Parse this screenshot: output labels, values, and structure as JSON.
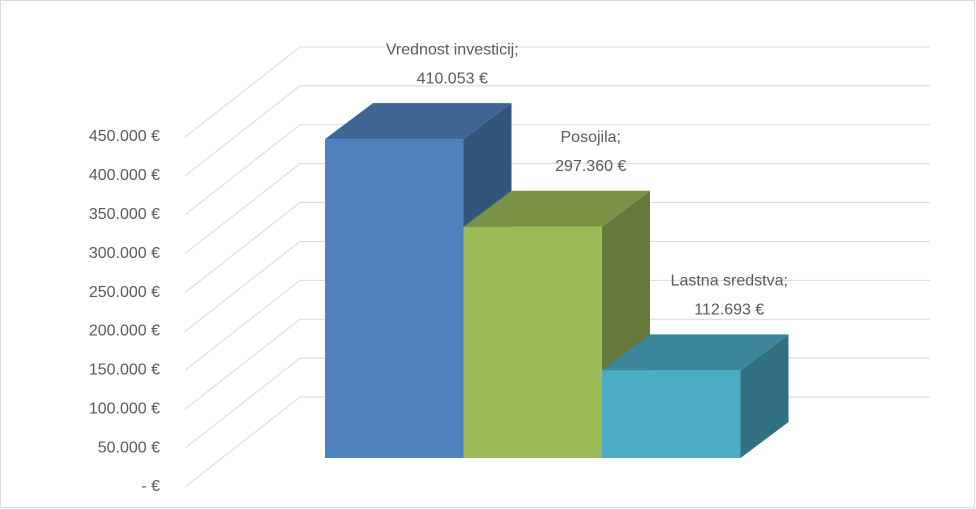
{
  "chart_data": {
    "type": "bar3d",
    "categories": [
      "Vrednost investicij;",
      "Posojila;",
      "Lastna sredstva;"
    ],
    "values": [
      410053,
      297360,
      112693
    ],
    "value_labels": [
      "410.053 €",
      "297.360 €",
      "112.693 €"
    ],
    "colors": [
      "#4f81bd",
      "#9bbb59",
      "#4bacc6"
    ],
    "ylim": [
      0,
      450000
    ],
    "yticks": [
      {
        "value": 0,
        "label": "-  €"
      },
      {
        "value": 50000,
        "label": "50.000 €"
      },
      {
        "value": 100000,
        "label": "100.000 €"
      },
      {
        "value": 150000,
        "label": "150.000 €"
      },
      {
        "value": 200000,
        "label": "200.000 €"
      },
      {
        "value": 250000,
        "label": "250.000 €"
      },
      {
        "value": 300000,
        "label": "300.000 €"
      },
      {
        "value": 350000,
        "label": "350.000 €"
      },
      {
        "value": 400000,
        "label": "400.000 €"
      },
      {
        "value": 450000,
        "label": "450.000 €"
      }
    ],
    "grid": true
  }
}
